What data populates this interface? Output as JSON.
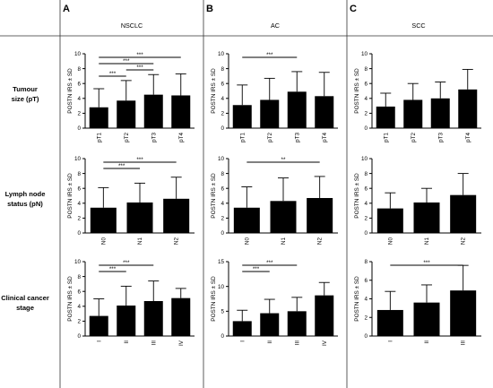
{
  "panels": [
    {
      "letter": "A",
      "title": "NSCLC"
    },
    {
      "letter": "B",
      "title": "AC"
    },
    {
      "letter": "C",
      "title": "SCC"
    }
  ],
  "rows": [
    {
      "line1": "Tumour",
      "line2": "size (pT)"
    },
    {
      "line1": "Lymph node",
      "line2": "status (pN)"
    },
    {
      "line1": "Clinical cancer",
      "line2": "stage"
    }
  ],
  "chart_data": [
    {
      "id": "A-pT",
      "type": "bar",
      "ylabel": "POSTN IRS ± SD",
      "categories": [
        "pT1",
        "pT2",
        "pT3",
        "pT4"
      ],
      "values": [
        2.8,
        3.7,
        4.5,
        4.4
      ],
      "sd_upper": [
        5.3,
        6.4,
        7.2,
        7.3
      ],
      "ylim": [
        0,
        10
      ],
      "yticks": [
        0,
        2,
        4,
        6,
        8,
        10
      ],
      "significance": [
        {
          "from": 0,
          "to": 3,
          "label": "***"
        },
        {
          "from": 0,
          "to": 2,
          "label": "***"
        },
        {
          "from": 1,
          "to": 2,
          "label": "***"
        },
        {
          "from": 0,
          "to": 1,
          "label": "***"
        }
      ]
    },
    {
      "id": "B-pT",
      "type": "bar",
      "ylabel": "POSTN IRS ± SD",
      "categories": [
        "pT1",
        "pT2",
        "pT3",
        "pT4"
      ],
      "values": [
        3.1,
        3.8,
        4.9,
        4.3
      ],
      "sd_upper": [
        5.8,
        6.7,
        7.6,
        7.5
      ],
      "ylim": [
        0,
        10
      ],
      "yticks": [
        0,
        2,
        4,
        6,
        8,
        10
      ],
      "significance": [
        {
          "from": 0,
          "to": 2,
          "label": "***"
        }
      ]
    },
    {
      "id": "C-pT",
      "type": "bar",
      "ylabel": "POSTN IRS ± SD",
      "categories": [
        "pT1",
        "pT2",
        "pT3",
        "pT4"
      ],
      "values": [
        2.9,
        3.8,
        4.0,
        5.2
      ],
      "sd_upper": [
        4.7,
        6.0,
        6.2,
        7.9
      ],
      "ylim": [
        0,
        10
      ],
      "yticks": [
        0,
        2,
        4,
        6,
        8,
        10
      ],
      "significance": []
    },
    {
      "id": "A-pN",
      "type": "bar",
      "ylabel": "POSTN IRS ± SD",
      "categories": [
        "N0",
        "N1",
        "N2"
      ],
      "values": [
        3.4,
        4.1,
        4.6
      ],
      "sd_upper": [
        6.1,
        6.7,
        7.5
      ],
      "ylim": [
        0,
        10
      ],
      "yticks": [
        0,
        2,
        4,
        6,
        8,
        10
      ],
      "significance": [
        {
          "from": 0,
          "to": 2,
          "label": "***"
        },
        {
          "from": 0,
          "to": 1,
          "label": "***"
        }
      ]
    },
    {
      "id": "B-pN",
      "type": "bar",
      "ylabel": "POSTN IRS ± SD",
      "categories": [
        "N0",
        "N1",
        "N2"
      ],
      "values": [
        3.4,
        4.3,
        4.7
      ],
      "sd_upper": [
        6.2,
        7.4,
        7.6
      ],
      "ylim": [
        0,
        10
      ],
      "yticks": [
        0,
        2,
        4,
        6,
        8,
        10
      ],
      "significance": [
        {
          "from": 0,
          "to": 2,
          "label": "**"
        }
      ]
    },
    {
      "id": "C-pN",
      "type": "bar",
      "ylabel": "POSTN IRS ± SD",
      "categories": [
        "N0",
        "N1",
        "N2"
      ],
      "values": [
        3.3,
        4.1,
        5.1
      ],
      "sd_upper": [
        5.4,
        6.0,
        8.0
      ],
      "ylim": [
        0,
        10
      ],
      "yticks": [
        0,
        2,
        4,
        6,
        8,
        10
      ],
      "significance": []
    },
    {
      "id": "A-stage",
      "type": "bar",
      "ylabel": "POSTN IRS ± SD",
      "categories": [
        "I",
        "II",
        "III",
        "IV"
      ],
      "values": [
        2.7,
        4.1,
        4.7,
        5.1
      ],
      "sd_upper": [
        5.0,
        6.7,
        7.4,
        6.4
      ],
      "ylim": [
        0,
        10
      ],
      "yticks": [
        0,
        2,
        4,
        6,
        8,
        10
      ],
      "significance": [
        {
          "from": 0,
          "to": 2,
          "label": "***"
        },
        {
          "from": 0,
          "to": 1,
          "label": "***"
        }
      ]
    },
    {
      "id": "B-stage",
      "type": "bar",
      "ylabel": "POSTN IRS ± SD",
      "categories": [
        "I",
        "II",
        "III",
        "IV"
      ],
      "values": [
        3.0,
        4.6,
        5.0,
        8.2
      ],
      "sd_upper": [
        5.2,
        7.4,
        7.8,
        10.8
      ],
      "ylim": [
        0,
        15
      ],
      "yticks": [
        0,
        5,
        10,
        15
      ],
      "significance": [
        {
          "from": 0,
          "to": 2,
          "label": "***"
        },
        {
          "from": 0,
          "to": 1,
          "label": "***"
        }
      ]
    },
    {
      "id": "C-stage",
      "type": "bar",
      "ylabel": "POSTN IRS ± SD",
      "categories": [
        "I",
        "II",
        "III"
      ],
      "values": [
        2.8,
        3.6,
        4.9
      ],
      "sd_upper": [
        4.8,
        5.5,
        7.6
      ],
      "ylim": [
        0,
        8
      ],
      "yticks": [
        0,
        2,
        4,
        6,
        8
      ],
      "significance": [
        {
          "from": 0,
          "to": 2,
          "label": "***"
        }
      ]
    }
  ]
}
